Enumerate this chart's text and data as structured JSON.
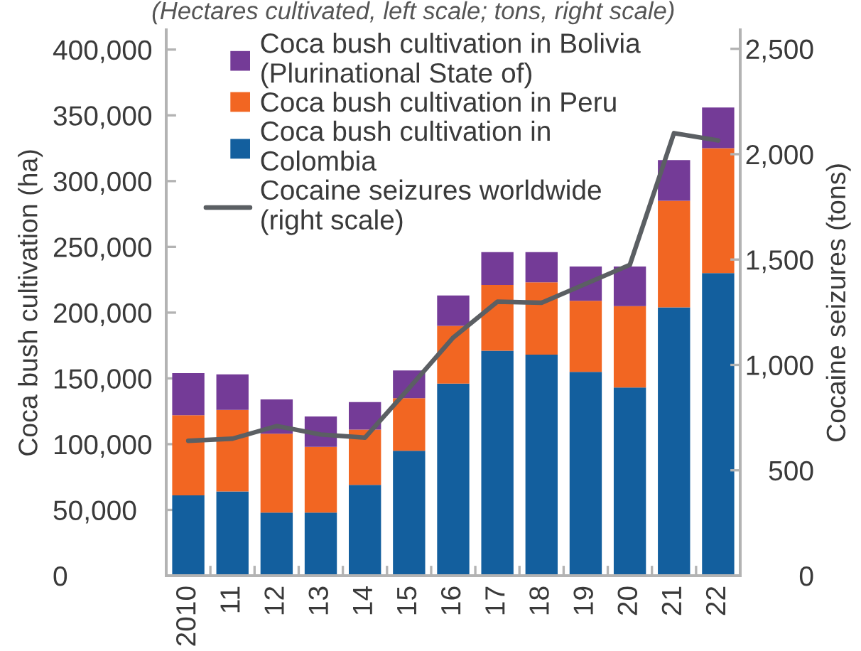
{
  "chart_data": {
    "type": "bar",
    "stacked": true,
    "subtitle": "(Hectares cultivated, left scale; tons, right scale)",
    "ylabel": "Coca bush cultivation (ha)",
    "y2label": "Cocaine seizures (tons)",
    "categories": [
      "2010",
      "11",
      "12",
      "13",
      "14",
      "15",
      "16",
      "17",
      "18",
      "19",
      "20",
      "21",
      "22"
    ],
    "series": [
      {
        "name": "Coca bush cultivation in\nColombia",
        "color": "#135f9e",
        "values": [
          61000,
          64000,
          48000,
          48000,
          69000,
          95000,
          146000,
          171000,
          168000,
          155000,
          143000,
          204000,
          230000
        ]
      },
      {
        "name": "Coca bush cultivation in Peru",
        "color": "#f26622",
        "values": [
          61000,
          62000,
          60000,
          50000,
          42000,
          40000,
          44000,
          50000,
          55000,
          54000,
          62000,
          81000,
          95000
        ]
      },
      {
        "name": "Coca bush cultivation in Bolivia\n(Plurinational State of)",
        "color": "#743b97",
        "values": [
          32000,
          27000,
          26000,
          23000,
          21000,
          21000,
          23000,
          25000,
          23000,
          26000,
          30000,
          31000,
          31000
        ]
      },
      {
        "name": "Cocaine seizures worldwide\n(right scale)",
        "type": "line",
        "axis": "y2",
        "color": "#5b5f63",
        "values": [
          640,
          650,
          710,
          670,
          655,
          890,
          1130,
          1300,
          1295,
          1385,
          1475,
          2100,
          2065
        ]
      }
    ],
    "ylim": [
      0,
      415000
    ],
    "yticks": [
      0,
      {
        "value": 50000,
        "label": "50,000"
      },
      {
        "value": 100000,
        "label": "100,000"
      },
      {
        "value": 150000,
        "label": "150,000"
      },
      {
        "value": 200000,
        "label": "200,000"
      },
      {
        "value": 250000,
        "label": "250,000"
      },
      {
        "value": 300000,
        "label": "300,000"
      },
      {
        "value": 350000,
        "label": "350,000"
      },
      {
        "value": 400000,
        "label": "400,000"
      }
    ],
    "y2lim": [
      0,
      2590
    ],
    "y2ticks": [
      0,
      500,
      {
        "value": 1000,
        "label": "1,000"
      },
      {
        "value": 1500,
        "label": "1,500"
      },
      {
        "value": 2000,
        "label": "2,000"
      },
      {
        "value": 2500,
        "label": "2,500"
      }
    ],
    "legend": "top left"
  }
}
